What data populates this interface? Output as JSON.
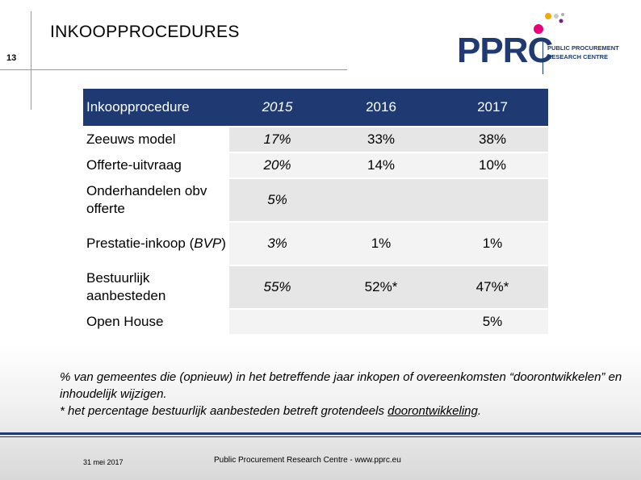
{
  "slide": {
    "title": "INKOOPPROCEDURES",
    "number": "13"
  },
  "logo": {
    "main": "PPRC",
    "line1": "PUBLIC PROCUREMENT",
    "line2": "RESEARCH CENTRE",
    "dot_colors": [
      "#e8007d",
      "#f2a900",
      "#c8c8c8",
      "#7a1f7a",
      "#b0b0b0"
    ]
  },
  "table": {
    "headers": [
      "Inkoopprocedure",
      "2015",
      "2016",
      "2017"
    ],
    "rows": [
      {
        "label": "Zeeuws model",
        "values": [
          "17%",
          "33%",
          "38%"
        ]
      },
      {
        "label": "Offerte-uitvraag",
        "values": [
          "20%",
          "14%",
          "10%"
        ]
      },
      {
        "label": "Onderhandelen obv offerte",
        "values": [
          "5%",
          "",
          ""
        ]
      },
      {
        "label_prefix": "Prestatie-inkoop (",
        "label_italic": "BVP",
        "label_suffix": ")",
        "values": [
          "3%",
          "1%",
          "1%"
        ]
      },
      {
        "label": "Bestuurlijk aanbesteden",
        "values": [
          "55%",
          "52%*",
          "47%*"
        ]
      },
      {
        "label": "Open House",
        "values": [
          "",
          "",
          "5%"
        ]
      }
    ]
  },
  "footnote": {
    "line1": "% van gemeentes die (opnieuw) in het betreffende jaar inkopen of overeenkomsten “doorontwikkelen” en inhoudelijk wijzigen.",
    "line2_prefix": "* het percentage bestuurlijk aanbesteden betreft grotendeels ",
    "line2_underlined": "doorontwikkeling",
    "line2_suffix": "."
  },
  "footer": {
    "date": "31 mei 2017",
    "center": "Public Procurement Research Centre - www.pprc.eu"
  }
}
